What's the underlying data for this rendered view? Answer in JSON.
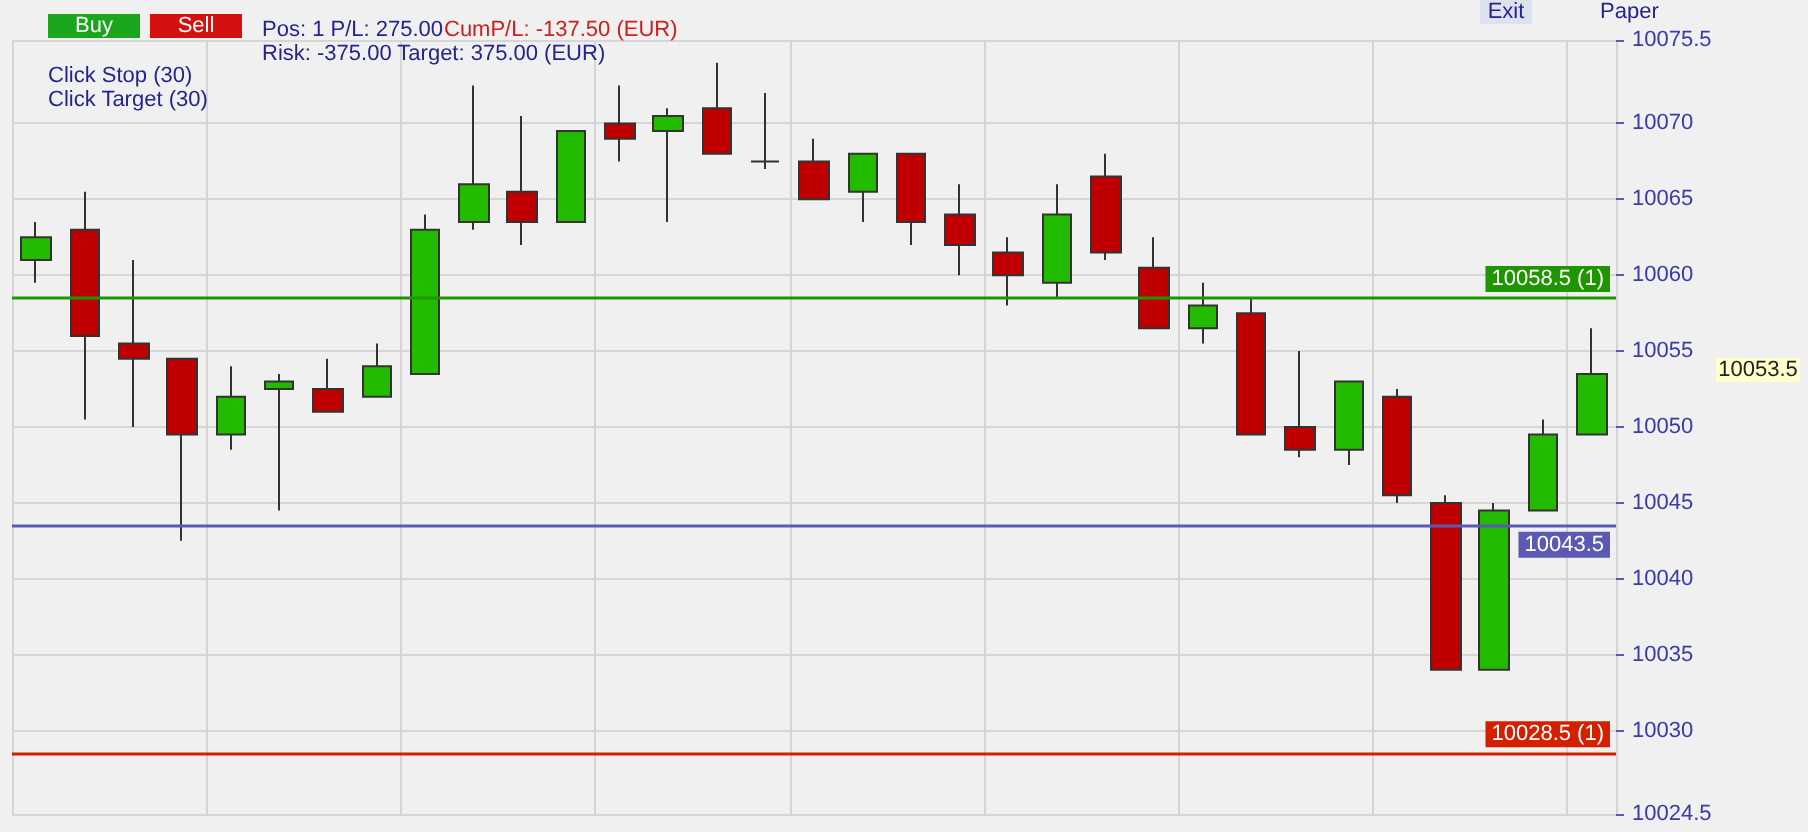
{
  "chart_data": {
    "type": "candlestick",
    "categories": [
      null,
      null,
      null,
      null,
      null,
      null,
      null,
      null,
      null,
      null,
      null,
      null,
      null,
      null,
      null,
      null,
      null,
      null,
      null,
      null,
      null,
      null,
      null,
      null,
      null,
      null,
      null,
      null,
      null,
      null,
      null,
      null,
      null
    ],
    "ohlc": [
      [
        10061,
        10063.5,
        10059.5,
        10062.5
      ],
      [
        10063,
        10065.5,
        10050.5,
        10056
      ],
      [
        10055.5,
        10061,
        10050,
        10054.5
      ],
      [
        10054.5,
        10054.5,
        10042.5,
        10049.5
      ],
      [
        10049.5,
        10054,
        10048.5,
        10052
      ],
      [
        10052.5,
        10053.5,
        10044.5,
        10053
      ],
      [
        10052.5,
        10054.5,
        10051,
        10051
      ],
      [
        10052,
        10055.5,
        10052,
        10054
      ],
      [
        10053.5,
        10064,
        10053.5,
        10063
      ],
      [
        10063.5,
        10072.5,
        10063,
        10066
      ],
      [
        10065.5,
        10070.5,
        10062,
        10063.5
      ],
      [
        10063.5,
        10069.5,
        10063.5,
        10069.5
      ],
      [
        10070,
        10072.5,
        10067.5,
        10069
      ],
      [
        10069.5,
        10071,
        10063.5,
        10070.5
      ],
      [
        10071,
        10074,
        10068,
        10068
      ],
      [
        10067.5,
        10072,
        10067,
        10067.5
      ],
      [
        10067.5,
        10069,
        10065,
        10065
      ],
      [
        10065.5,
        10068,
        10063.5,
        10068
      ],
      [
        10068,
        10068,
        10062,
        10063.5
      ],
      [
        10064,
        10066,
        10060,
        10062
      ],
      [
        10061.5,
        10062.5,
        10058,
        10060
      ],
      [
        10059.5,
        10066,
        10058.5,
        10064
      ],
      [
        10066.5,
        10068,
        10061,
        10061.5
      ],
      [
        10060.5,
        10062.5,
        10056.5,
        10056.5
      ],
      [
        10056.5,
        10059.5,
        10055.5,
        10058
      ],
      [
        10057.5,
        10058.5,
        10049.5,
        10049.5
      ],
      [
        10050,
        10055,
        10048,
        10048.5
      ],
      [
        10048.5,
        10053,
        10047.5,
        10053
      ],
      [
        10052,
        10052.5,
        10045,
        10045.5
      ],
      [
        10045,
        10045.5,
        10034,
        10034
      ],
      [
        10034,
        10045,
        10034,
        10044.5
      ],
      [
        10044.5,
        10050.5,
        10044.5,
        10049.5
      ],
      [
        10049.5,
        10056.5,
        10049.5,
        10053.5
      ]
    ],
    "ylim": [
      10024.5,
      10075.5
    ],
    "yticks": [
      10024.5,
      10030,
      10035,
      10040,
      10045,
      10050,
      10055,
      10060,
      10065,
      10070,
      10075.5
    ],
    "grid": true,
    "ref_lines": [
      {
        "axis": "y",
        "value": 10043.5,
        "label": "10043.5",
        "color": "#5a5ab4"
      },
      {
        "axis": "y",
        "value": 10058.5,
        "label": "10058.5 (1)",
        "color": "#1e9600"
      },
      {
        "axis": "y",
        "value": 10028.5,
        "label": "10028.5 (1)",
        "color": "#d42000"
      }
    ],
    "annotations": [
      "Buy",
      "Sell",
      "Pos: 1  P/L: 275.00",
      "CumP/L: -137.50 (EUR)",
      "Risk: -375.00  Target: 375.00 (EUR)",
      "Click Stop  (30)",
      "Click Target  (30)",
      "Exit",
      "Paper",
      "10053.5"
    ]
  }
}
